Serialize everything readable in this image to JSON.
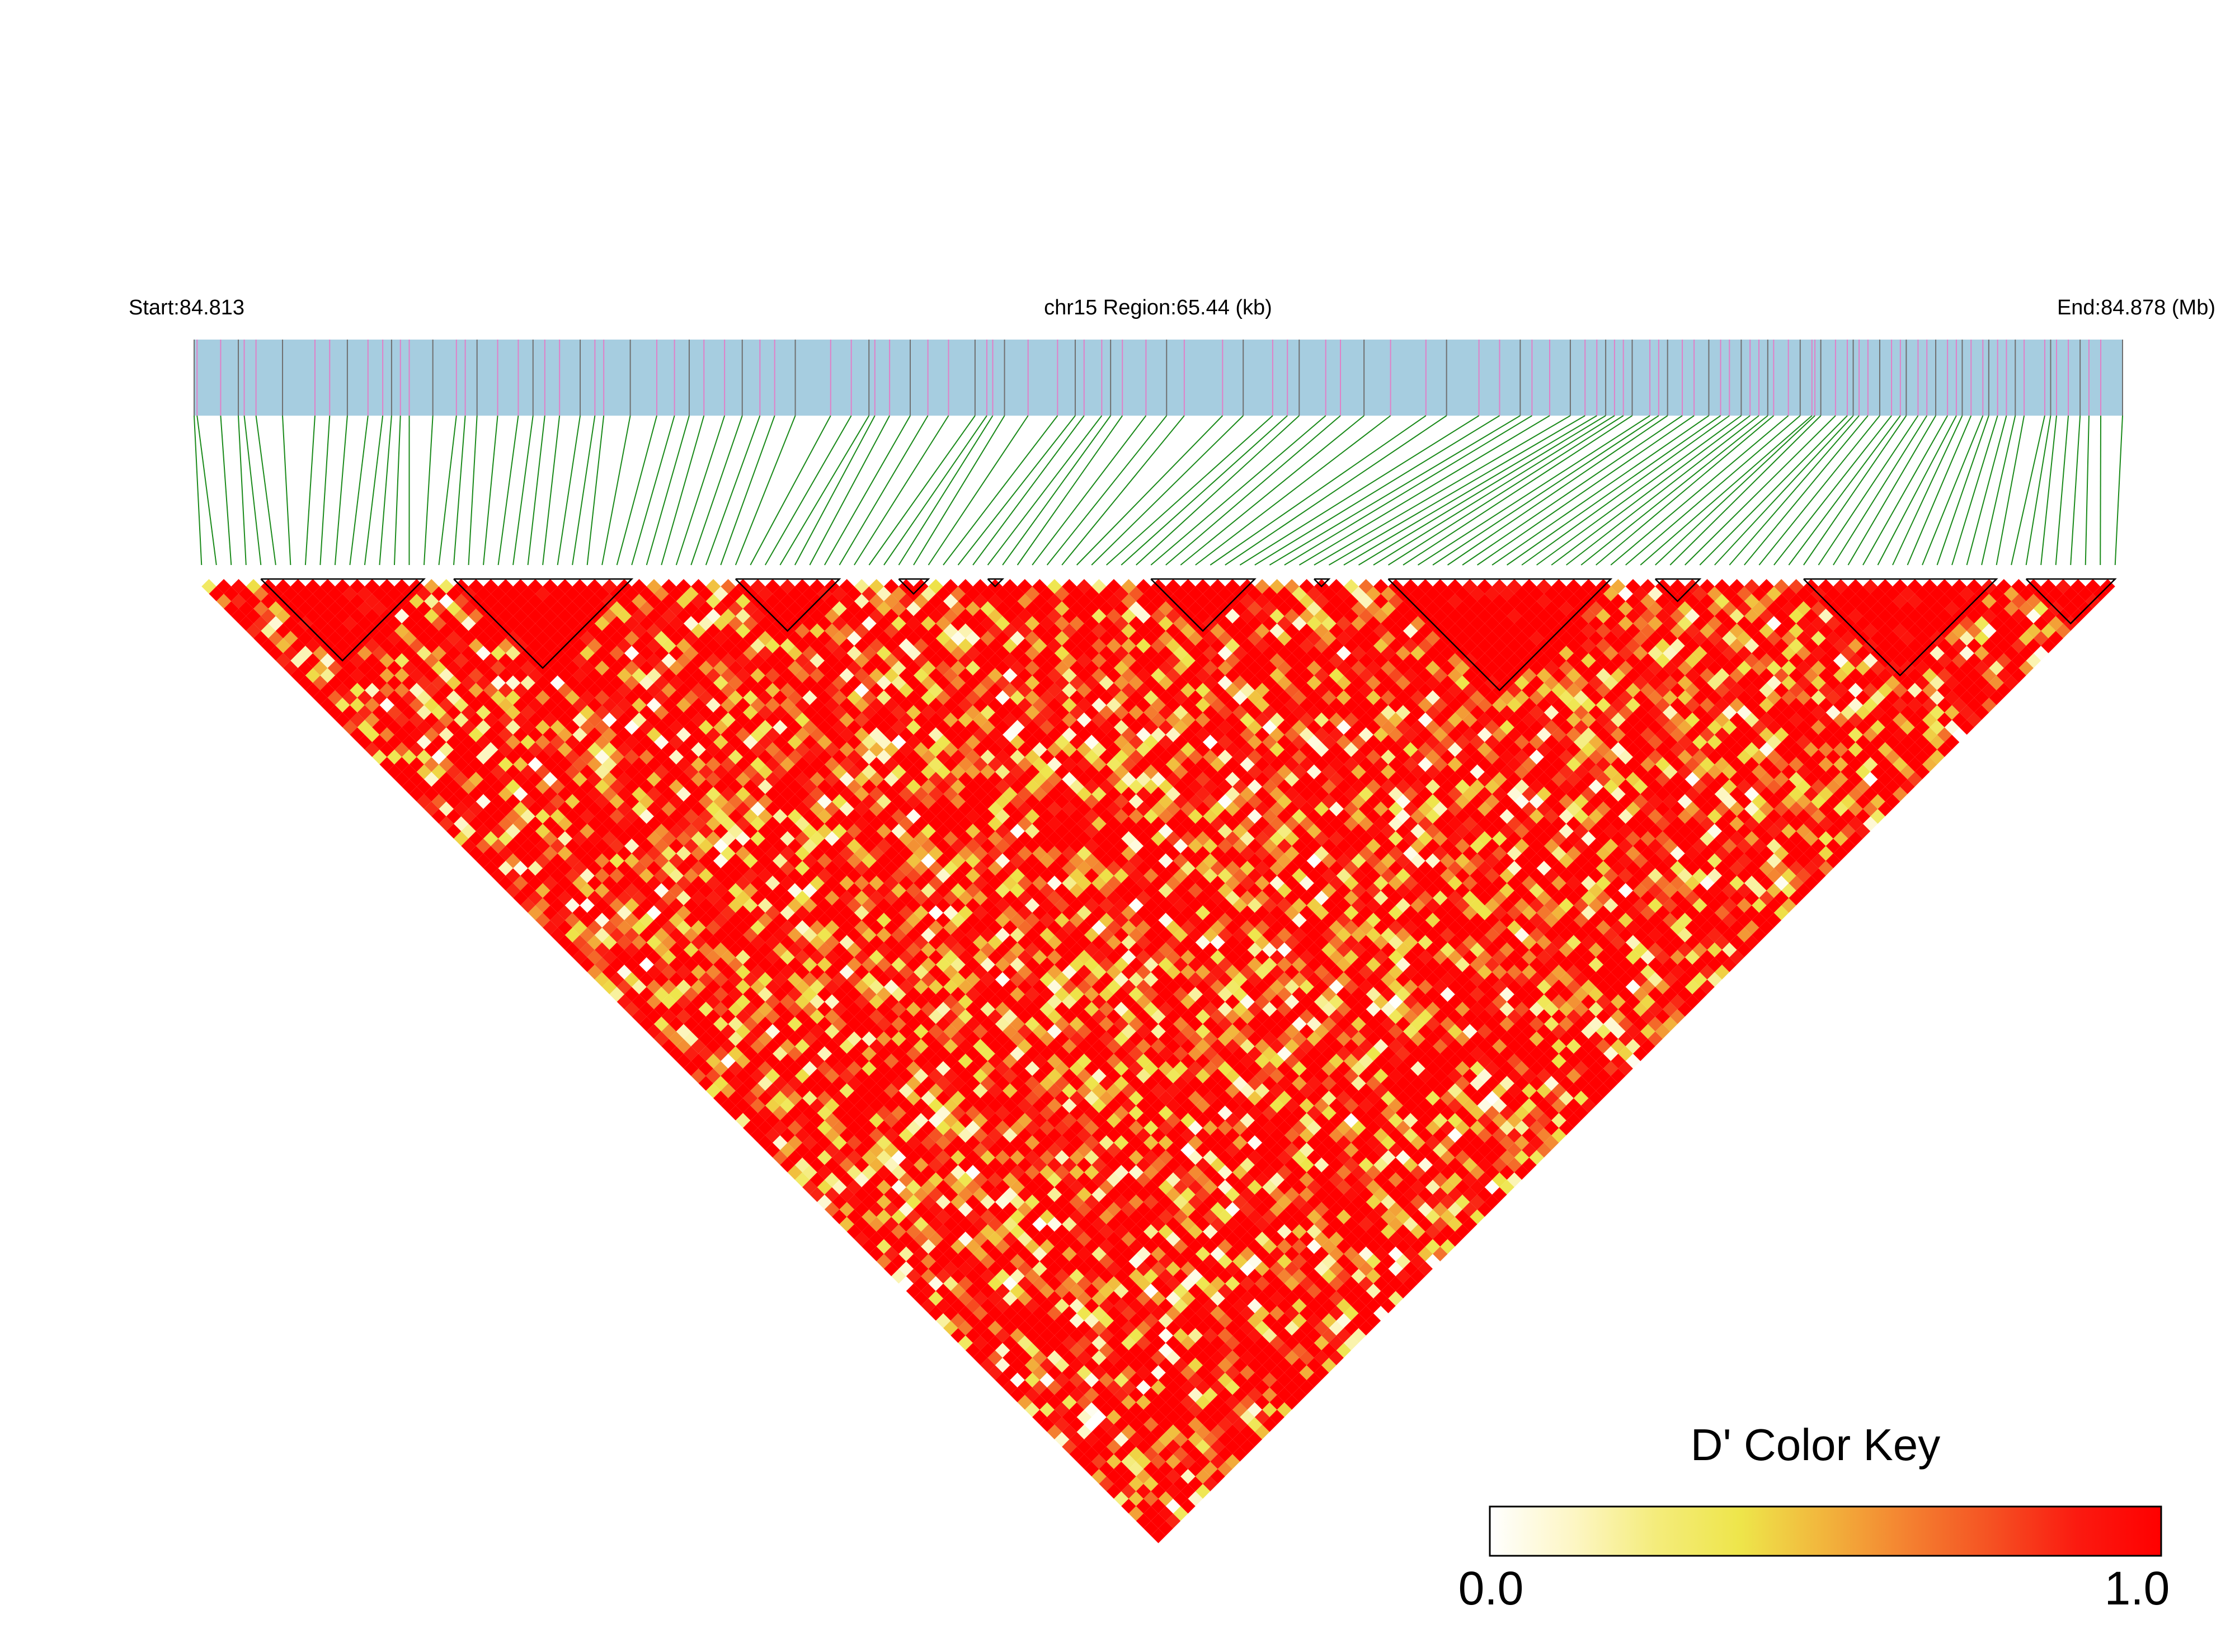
{
  "chart_data": {
    "type": "heatmap",
    "subtype": "linkage-disequilibrium",
    "header": {
      "start_label": "Start:84.813",
      "region_label": "chr15 Region:65.44 (kb)",
      "end_label": "End:84.878 (Mb)"
    },
    "region": {
      "chromosome": "chr15",
      "start_mb": 84.813,
      "end_mb": 84.878,
      "length_kb": 65.44
    },
    "snp_count": 130,
    "snp_positions_kb": [
      0,
      0.1,
      0.9,
      1.5,
      1.7,
      4.1,
      4.6,
      5.2,
      5.9,
      6.4,
      7.0,
      7.3,
      8.1,
      8.9,
      9.6,
      10.3,
      11.0,
      11.9,
      12.4,
      13.1,
      13.9,
      14.8,
      15.7,
      16.3,
      17.3,
      18.0,
      18.6,
      19.7,
      21.6,
      22.3,
      23.6,
      24.9,
      25.6,
      26.5,
      27.5,
      28.3,
      29.9,
      30.8,
      31.5,
      32.3,
      34.9,
      36.6,
      37.5,
      38.4,
      43.6,
      45.4,
      46.7,
      47.2,
      47.6,
      48.5,
      48.8,
      49.4,
      50.0,
      50.5,
      50.9,
      51.4,
      52.1,
      52.5,
      53.1,
      53.6,
      54.1,
      54.9,
      55.2,
      55.7,
      56.3,
      56.5,
      56.8,
      57.2,
      57.6,
      58.1,
      58.8,
      59.1,
      59.5,
      60.0,
      60.3,
      60.7,
      61.2,
      61.8,
      62.1,
      62.8,
      63.2,
      63.6,
      64.0,
      64.7,
      65.44,
      3.0,
      9.2,
      13.6,
      16.8,
      20.4,
      23.1,
      26.9,
      30.2,
      33.0,
      35.6,
      39.7,
      40.6,
      41.8,
      44.3,
      46.0,
      47.9,
      49.7,
      51.8,
      53.4,
      55.0,
      56.1,
      57.9,
      59.8,
      61.5,
      63.0,
      64.3,
      2.1,
      6.7,
      11.5,
      19.2,
      22.9,
      24.3,
      27.1,
      29.3,
      31.1,
      33.6,
      37.1,
      38.9,
      42.5,
      45.0,
      48.2,
      52.8,
      54.5,
      58.5,
      60.9
    ],
    "blocks": [
      {
        "start": 4,
        "end": 15
      },
      {
        "start": 17,
        "end": 29
      },
      {
        "start": 36,
        "end": 43
      },
      {
        "start": 47,
        "end": 49
      },
      {
        "start": 53,
        "end": 54
      },
      {
        "start": 64,
        "end": 71
      },
      {
        "start": 75,
        "end": 76
      },
      {
        "start": 80,
        "end": 95
      },
      {
        "start": 98,
        "end": 101
      },
      {
        "start": 108,
        "end": 121
      },
      {
        "start": 123,
        "end": 129
      }
    ],
    "color_key": {
      "title": "D' Color Key",
      "min_label": "0.0",
      "max_label": "1.0",
      "range": [
        0,
        1
      ],
      "stops": [
        "#ffffff",
        "#fdf6c4",
        "#f4ec7a",
        "#eee54a",
        "#f2b43c",
        "#f48030",
        "#f55022",
        "#fb1a10",
        "#ff0000"
      ]
    },
    "colors": {
      "gene_track": "#a6cde0",
      "snp_line_dark": "#707070",
      "snp_line_pink": "#e080c8",
      "connector": "#1a8a1a"
    }
  }
}
